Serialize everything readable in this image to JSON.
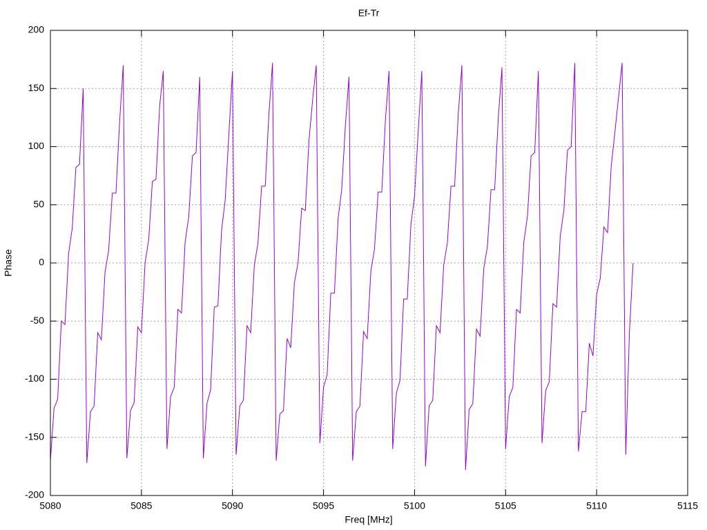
{
  "chart_data": {
    "type": "line",
    "title": "Ef-Tr",
    "xlabel": "Freq [MHz]",
    "ylabel": "Phase",
    "xlim": [
      5080,
      5115
    ],
    "xticks": [
      5080,
      5085,
      5090,
      5095,
      5100,
      5105,
      5110,
      5115
    ],
    "ylim": [
      -200,
      200
    ],
    "yticks": [
      -200,
      -150,
      -100,
      -50,
      0,
      50,
      100,
      150,
      200
    ],
    "grid": true,
    "x": [
      5080.0,
      5080.2,
      5080.4,
      5080.6,
      5080.8,
      5081.0,
      5081.2,
      5081.4,
      5081.6,
      5081.8,
      5082.0,
      5082.2,
      5082.4,
      5082.6,
      5082.8,
      5083.0,
      5083.2,
      5083.4,
      5083.6,
      5083.8,
      5084.0,
      5084.2,
      5084.4,
      5084.6,
      5084.8,
      5085.0,
      5085.2,
      5085.4,
      5085.6,
      5085.8,
      5086.0,
      5086.2,
      5086.4,
      5086.6,
      5086.8,
      5087.0,
      5087.2,
      5087.4,
      5087.6,
      5087.8,
      5088.0,
      5088.2,
      5088.4,
      5088.6,
      5088.8,
      5089.0,
      5089.2,
      5089.4,
      5089.6,
      5089.8,
      5090.0,
      5090.2,
      5090.4,
      5090.6,
      5090.8,
      5091.0,
      5091.2,
      5091.4,
      5091.6,
      5091.8,
      5092.0,
      5092.2,
      5092.4,
      5092.6,
      5092.8,
      5093.0,
      5093.2,
      5093.4,
      5093.6,
      5093.8,
      5094.0,
      5094.2,
      5094.4,
      5094.6,
      5094.8,
      5095.0,
      5095.2,
      5095.4,
      5095.6,
      5095.8,
      5096.0,
      5096.2,
      5096.4,
      5096.6,
      5096.8,
      5097.0,
      5097.2,
      5097.4,
      5097.6,
      5097.8,
      5098.0,
      5098.2,
      5098.4,
      5098.6,
      5098.8,
      5099.0,
      5099.2,
      5099.4,
      5099.6,
      5099.8,
      5100.0,
      5100.2,
      5100.4,
      5100.6,
      5100.8,
      5101.0,
      5101.2,
      5101.4,
      5101.6,
      5101.8,
      5102.0,
      5102.2,
      5102.4,
      5102.6,
      5102.8,
      5103.0,
      5103.2,
      5103.4,
      5103.6,
      5103.8,
      5104.0,
      5104.2,
      5104.4,
      5104.6,
      5104.8,
      5105.0,
      5105.2,
      5105.4,
      5105.6,
      5105.8,
      5106.0,
      5106.2,
      5106.4,
      5106.6,
      5106.8,
      5107.0,
      5107.2,
      5107.4,
      5107.6,
      5107.8,
      5108.0,
      5108.2,
      5108.4,
      5108.6,
      5108.8,
      5109.0,
      5109.2,
      5109.4,
      5109.6,
      5109.8,
      5110.0,
      5110.2,
      5110.4,
      5110.6,
      5110.8,
      5111.0,
      5111.2,
      5111.4,
      5111.6,
      5111.8,
      5112.0
    ],
    "series": [
      {
        "name": "Ef-Tr",
        "color": "#9400d3",
        "values": [
          -170,
          -125,
          -117,
          -50,
          -53,
          8,
          30,
          82,
          85,
          150,
          -172,
          -128,
          -123,
          -60,
          -66,
          -8,
          11,
          60,
          60,
          121,
          170,
          -168,
          -127,
          -120,
          -55,
          -60,
          0,
          20,
          70,
          72,
          135,
          165,
          -160,
          -115,
          -107,
          -40,
          -43,
          18,
          40,
          92,
          95,
          160,
          -168,
          -121,
          -109,
          -38,
          -37,
          28,
          54,
          110,
          165,
          -165,
          -123,
          -118,
          -54,
          -60,
          -2,
          17,
          66,
          66,
          128,
          172,
          -170,
          -130,
          -127,
          -65,
          -73,
          -17,
          0,
          47,
          45,
          105,
          140,
          170,
          -155,
          -107,
          -96,
          -26,
          -26,
          38,
          63,
          118,
          160,
          -170,
          -128,
          -123,
          -59,
          -65,
          -7,
          12,
          61,
          61,
          123,
          165,
          -160,
          -112,
          -101,
          -31,
          -31,
          33,
          58,
          113,
          165,
          -175,
          -123,
          -118,
          -54,
          -60,
          -2,
          17,
          66,
          66,
          128,
          170,
          -178,
          -126,
          -121,
          -57,
          -63,
          -5,
          14,
          63,
          63,
          125,
          168,
          -160,
          -115,
          -107,
          -40,
          -43,
          18,
          40,
          92,
          95,
          165,
          -155,
          -110,
          -102,
          -35,
          -38,
          23,
          45,
          97,
          100,
          172,
          -162,
          -128,
          -128,
          -69,
          -80,
          -27,
          -13,
          31,
          26,
          83,
          112,
          142,
          172,
          -165,
          -60,
          0
        ]
      }
    ]
  }
}
